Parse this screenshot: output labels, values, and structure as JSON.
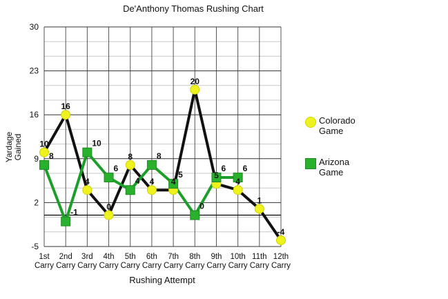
{
  "chart_data": {
    "type": "line",
    "title": "De'Anthony Thomas Rushing Chart",
    "xlabel": "Rushing Attempt",
    "ylabel_lines": [
      "Yardage",
      "Gained"
    ],
    "categories": [
      [
        "1st",
        "Carry"
      ],
      [
        "2nd",
        "Carry"
      ],
      [
        "3rd",
        "Carry"
      ],
      [
        "4th",
        "Carry"
      ],
      [
        "5th",
        "Carry"
      ],
      [
        "6th",
        "Carry"
      ],
      [
        "7th",
        "Carry"
      ],
      [
        "8th",
        "Carry"
      ],
      [
        "9th",
        "Carry"
      ],
      [
        "10th",
        "Carry"
      ],
      [
        "11th",
        "Carry"
      ],
      [
        "12th",
        "Carry"
      ]
    ],
    "ylim": [
      -5,
      30
    ],
    "yticks": [
      -5,
      2,
      9,
      16,
      23,
      30
    ],
    "grid": true,
    "legend_placement": "right",
    "series": [
      {
        "name": "Colorado Game",
        "marker": "circle",
        "line_color": "#111111",
        "marker_color": "#eef21f",
        "values": [
          10,
          16,
          4,
          0,
          8,
          4,
          4,
          20,
          5,
          4,
          1,
          -4
        ]
      },
      {
        "name": "Arizona Game",
        "marker": "square",
        "line_color": "#1c9f2a",
        "marker_color": "#29b12e",
        "values": [
          8,
          -1,
          10,
          6,
          4,
          8,
          5,
          0,
          6,
          6,
          null,
          null
        ]
      }
    ]
  }
}
